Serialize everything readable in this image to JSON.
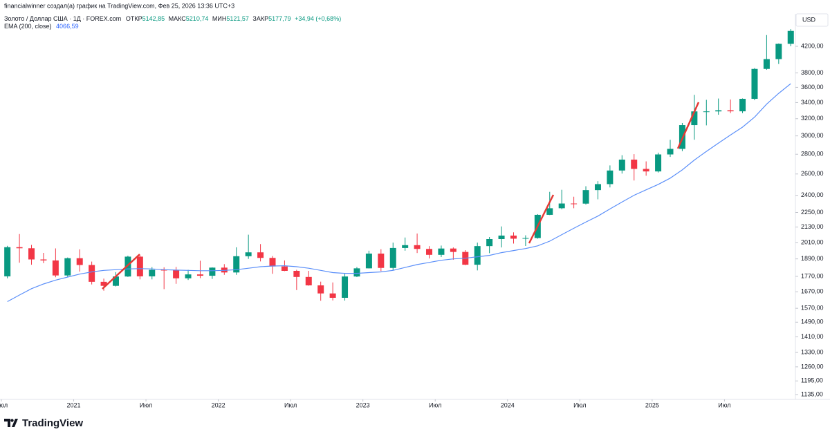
{
  "credit": "financialwinner создал(а) график на TradingView.com, Фев 25, 2026 13:36 UTC+3",
  "legend": {
    "symbol": "Золото / Доллар США · 1Д · FOREX.com",
    "open_label": "ОТКР",
    "open": "5142,85",
    "high_label": "МАКС",
    "high": "5210,74",
    "low_label": "МИН",
    "low": "5121,57",
    "close_label": "ЗАКР",
    "close": "5177,79",
    "change": "+34,94 (+0,68%)",
    "ema_label": "EMA (200, close)",
    "ema_value": "4066,59"
  },
  "logo": "TradingView",
  "chart_data": {
    "type": "candlestick",
    "log": true,
    "grid": false,
    "y_axis_label": "USD",
    "up_color": "#089981",
    "down_color": "#f23645",
    "x": [
      "2020-07",
      "2020-08",
      "2020-09",
      "2020-10",
      "2020-11",
      "2020-12",
      "2021-01",
      "2021-02",
      "2021-03",
      "2021-04",
      "2021-05",
      "2021-06",
      "2021-07",
      "2021-08",
      "2021-09",
      "2021-10",
      "2021-11",
      "2021-12",
      "2022-01",
      "2022-02",
      "2022-03",
      "2022-04",
      "2022-05",
      "2022-06",
      "2022-07",
      "2022-08",
      "2022-09",
      "2022-10",
      "2022-11",
      "2022-12",
      "2023-01",
      "2023-02",
      "2023-03",
      "2023-04",
      "2023-05",
      "2023-06",
      "2023-07",
      "2023-08",
      "2023-09",
      "2023-10",
      "2023-11",
      "2023-12",
      "2024-01",
      "2024-02",
      "2024-03",
      "2024-04",
      "2024-05",
      "2024-06",
      "2024-07",
      "2024-08",
      "2024-09",
      "2024-10",
      "2024-11",
      "2024-12",
      "2025-01",
      "2025-02",
      "2025-03",
      "2025-04",
      "2025-05",
      "2025-06",
      "2025-07",
      "2025-08",
      "2025-09",
      "2025-10",
      "2025-11",
      "2025-12"
    ],
    "open": [
      1770,
      1975,
      1967,
      1886,
      1879,
      1776,
      1895,
      1847,
      1734,
      1708,
      1769,
      1906,
      1770,
      1814,
      1813,
      1757,
      1783,
      1774,
      1829,
      1796,
      1909,
      1937,
      1897,
      1837,
      1807,
      1766,
      1711,
      1660,
      1633,
      1769,
      1824,
      1928,
      1827,
      1969,
      1990,
      1962,
      1919,
      1965,
      1940,
      1849,
      1983,
      2036,
      2063,
      2039,
      2044,
      2230,
      2286,
      2327,
      2326,
      2447,
      2503,
      2634,
      2744,
      2650,
      2625,
      2798,
      2857,
      3124,
      3289,
      3289,
      3303,
      3290,
      3448,
      3858,
      4003,
      4239
    ],
    "high": [
      1985,
      2075,
      1992,
      1933,
      1966,
      1900,
      1959,
      1871,
      1755,
      1798,
      1913,
      1916,
      1833,
      1831,
      1834,
      1814,
      1877,
      1831,
      1853,
      1974,
      2070,
      1998,
      1910,
      1879,
      1814,
      1807,
      1735,
      1730,
      1787,
      1833,
      1949,
      1960,
      2009,
      2048,
      2079,
      1983,
      1987,
      1973,
      1953,
      2009,
      2052,
      2135,
      2088,
      2065,
      2236,
      2431,
      2450,
      2387,
      2483,
      2531,
      2685,
      2790,
      2801,
      2726,
      2817,
      2956,
      3149,
      3500,
      3435,
      3452,
      3439,
      3453,
      3871,
      4381,
      4245,
      4480
    ],
    "low": [
      1757,
      1863,
      1849,
      1860,
      1764,
      1765,
      1802,
      1717,
      1677,
      1704,
      1766,
      1750,
      1750,
      1687,
      1721,
      1746,
      1758,
      1753,
      1780,
      1780,
      1890,
      1872,
      1787,
      1805,
      1681,
      1709,
      1615,
      1617,
      1616,
      1765,
      1823,
      1805,
      1810,
      1949,
      1932,
      1893,
      1903,
      1884,
      1846,
      1810,
      1931,
      1973,
      2002,
      1984,
      2039,
      2228,
      2277,
      2286,
      2318,
      2364,
      2472,
      2604,
      2537,
      2583,
      2614,
      2772,
      2833,
      2957,
      3121,
      3248,
      3268,
      3268,
      3430,
      3845,
      3930,
      4200
    ],
    "close": [
      1975,
      1967,
      1886,
      1879,
      1776,
      1895,
      1847,
      1734,
      1708,
      1769,
      1906,
      1770,
      1814,
      1813,
      1757,
      1783,
      1774,
      1829,
      1796,
      1909,
      1937,
      1897,
      1837,
      1807,
      1766,
      1711,
      1660,
      1633,
      1769,
      1824,
      1928,
      1827,
      1969,
      1990,
      1962,
      1919,
      1965,
      1940,
      1849,
      1983,
      2036,
      2063,
      2039,
      2044,
      2230,
      2286,
      2327,
      2326,
      2447,
      2503,
      2634,
      2744,
      2650,
      2625,
      2798,
      2857,
      3124,
      3289,
      3289,
      3303,
      3290,
      3448,
      3858,
      4003,
      4239,
      4450
    ],
    "ema": {
      "name": "EMA (200, close)",
      "color": "#5b8ff9",
      "values": [
        1610,
        1650,
        1690,
        1720,
        1745,
        1765,
        1785,
        1800,
        1810,
        1815,
        1820,
        1822,
        1820,
        1815,
        1812,
        1810,
        1808,
        1808,
        1810,
        1815,
        1825,
        1835,
        1840,
        1842,
        1835,
        1825,
        1810,
        1795,
        1790,
        1790,
        1795,
        1800,
        1810,
        1830,
        1850,
        1865,
        1880,
        1890,
        1895,
        1905,
        1915,
        1935,
        1950,
        1965,
        1985,
        2020,
        2070,
        2120,
        2170,
        2220,
        2280,
        2340,
        2400,
        2450,
        2500,
        2560,
        2640,
        2740,
        2830,
        2920,
        3010,
        3100,
        3220,
        3380,
        3520,
        3650
      ]
    },
    "xlim": [
      "2020-06-28",
      "2025-12-28"
    ],
    "xticks": [
      {
        "value": "2020-07-01",
        "label": "Июл"
      },
      {
        "value": "2021-01-01",
        "label": "2021"
      },
      {
        "value": "2021-07-01",
        "label": "Июл"
      },
      {
        "value": "2022-01-01",
        "label": "2022"
      },
      {
        "value": "2022-07-01",
        "label": "Июл"
      },
      {
        "value": "2023-01-01",
        "label": "2023"
      },
      {
        "value": "2023-07-01",
        "label": "Июл"
      },
      {
        "value": "2024-01-01",
        "label": "2024"
      },
      {
        "value": "2024-07-01",
        "label": "Июл"
      },
      {
        "value": "2025-01-01",
        "label": "2025"
      },
      {
        "value": "2025-07-01",
        "label": "Июл"
      }
    ],
    "ylim": [
      1115,
      4745
    ],
    "yticks": [
      {
        "value": 1135,
        "label": "1135,00"
      },
      {
        "value": 1195,
        "label": "1195,00"
      },
      {
        "value": 1260,
        "label": "1260,00"
      },
      {
        "value": 1330,
        "label": "1330,00"
      },
      {
        "value": 1410,
        "label": "1410,00"
      },
      {
        "value": 1490,
        "label": "1490,00"
      },
      {
        "value": 1570,
        "label": "1570,00"
      },
      {
        "value": 1670,
        "label": "1670,00"
      },
      {
        "value": 1770,
        "label": "1770,00"
      },
      {
        "value": 1890,
        "label": "1890,00"
      },
      {
        "value": 2010,
        "label": "2010,00"
      },
      {
        "value": 2130,
        "label": "2130,00"
      },
      {
        "value": 2250,
        "label": "2250,00"
      },
      {
        "value": 2400,
        "label": "2400,00"
      },
      {
        "value": 2600,
        "label": "2600,00"
      },
      {
        "value": 2800,
        "label": "2800,00"
      },
      {
        "value": 3000,
        "label": "3000,00"
      },
      {
        "value": 3200,
        "label": "3200,00"
      },
      {
        "value": 3400,
        "label": "3400,00"
      },
      {
        "value": 3600,
        "label": "3600,00"
      },
      {
        "value": 3800,
        "label": "3800,00"
      },
      {
        "value": 4200,
        "label": "4200,00"
      }
    ]
  }
}
